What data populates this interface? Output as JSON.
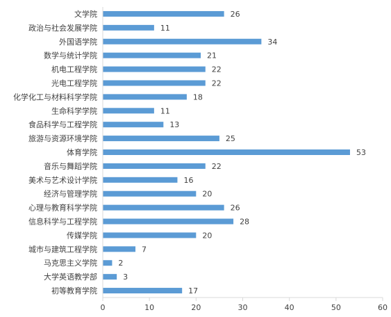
{
  "chart_data": {
    "type": "bar",
    "orientation": "horizontal",
    "categories": [
      "文学院",
      "政治与社会发展学院",
      "外国语学院",
      "数学与统计学院",
      "机电工程学院",
      "光电工程学院",
      "化学化工与材料科学学院",
      "生命科学学院",
      "食品科学与工程学院",
      "旅游与资源环境学院",
      "体育学院",
      "音乐与舞蹈学院",
      "美术与艺术设计学院",
      "经济与管理学院",
      "心理与教育科学学院",
      "信息科学与工程学院",
      "传媒学院",
      "城市与建筑工程学院",
      "马克思主义学院",
      "大学英语教学部",
      "初等教育学院"
    ],
    "values": [
      26,
      11,
      34,
      21,
      22,
      22,
      18,
      11,
      13,
      25,
      53,
      22,
      16,
      20,
      26,
      28,
      20,
      7,
      2,
      3,
      17
    ],
    "xlim": [
      0,
      60
    ],
    "xticks": [
      0,
      10,
      20,
      30,
      40,
      50,
      60
    ],
    "data_labels": true,
    "grid": false,
    "legend": "none",
    "colors": {
      "bar": "#5b9bd5",
      "axis": "#d9d9d9",
      "text": "#404040"
    }
  }
}
